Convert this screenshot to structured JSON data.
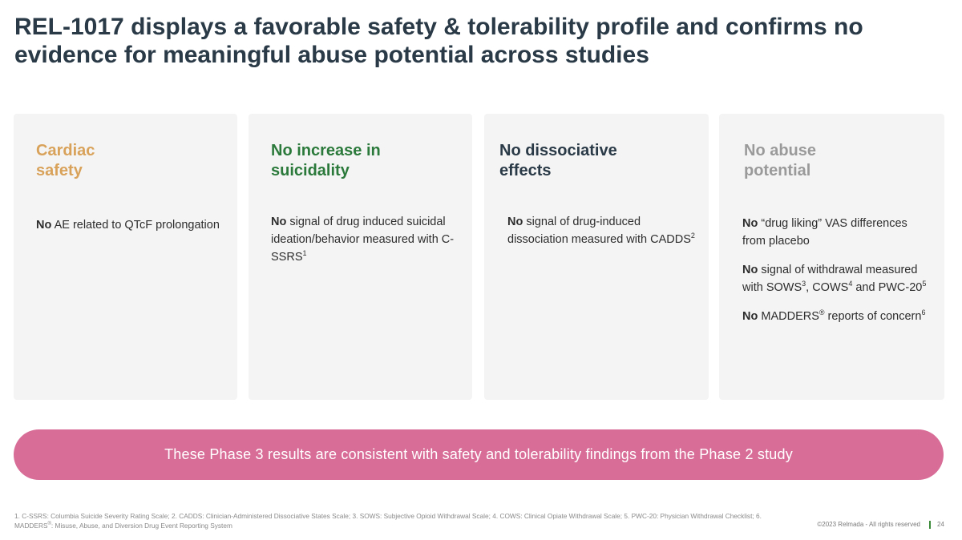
{
  "title": "REL-1017 displays a favorable safety & tolerability profile and confirms no evidence for meaningful abuse potential across studies",
  "cards": [
    {
      "title_lines": [
        "Cardiac",
        "safety"
      ],
      "color": "#d9a25a",
      "items": [
        {
          "bold": "No",
          "text": " AE related to QTcF prolongation"
        }
      ]
    },
    {
      "title_lines": [
        "No increase in",
        "suicidality"
      ],
      "color": "#2b7a3b",
      "items": [
        {
          "bold": "No",
          "text": " signal of drug induced suicidal ideation/behavior measured with C-SSRS",
          "sup": "1"
        }
      ]
    },
    {
      "title_lines": [
        "No dissociative",
        "effects"
      ],
      "color": "#2a3a47",
      "items": [
        {
          "bold": "No",
          "text": " signal of drug-induced dissociation measured with CADDS",
          "sup": "2"
        }
      ]
    },
    {
      "title_lines": [
        "No abuse",
        "potential"
      ],
      "color": "#9a9a9a",
      "items": [
        {
          "bold": "No",
          "text": " “drug liking” VAS differences from placebo"
        },
        {
          "bold": "No",
          "text": " signal of withdrawal measured with SOWS",
          "sup": "3",
          "text2": ", COWS",
          "sup2": "4",
          "text3": " and PWC-20",
          "sup3": "5"
        },
        {
          "bold": "No",
          "text": " MADDERS",
          "sup": "®",
          "text2": " reports of concern",
          "sup2": "6"
        }
      ]
    }
  ],
  "banner": "These Phase 3 results are consistent with safety and tolerability findings from the Phase 2 study",
  "footnote_part1": "1. C-SSRS: Columbia Suicide Severity Rating Scale; 2. CADDS: Clinician-Administered Dissociative States Scale; 3. SOWS: Subjective Opioid Withdrawal Scale; 4. COWS: Clinical Opiate Withdrawal Scale; 5. PWC-20: Physician Withdrawal Checklist; 6. MADDERS",
  "footnote_sup": "®",
  "footnote_part2": ": Misuse, Abuse, and Diversion Drug Event Reporting System",
  "copyright": "©2023 Relmada - All rights reserved",
  "page_number": "24"
}
